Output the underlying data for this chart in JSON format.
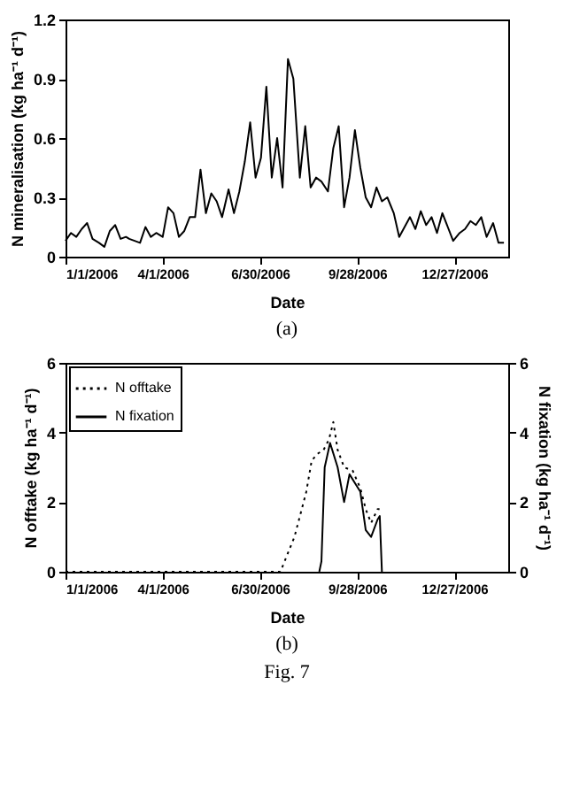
{
  "chart_data": [
    {
      "type": "line",
      "xlabel": "Date",
      "ylabel": "N mineralisation (kg ha⁻¹ d⁻¹)",
      "grid": false,
      "marker": "none",
      "line_style": "solid",
      "color": "#000000",
      "x": [
        "2006-01-01",
        "2006-01-06",
        "2006-01-11",
        "2006-01-16",
        "2006-01-21",
        "2006-01-26",
        "2006-02-01",
        "2006-02-06",
        "2006-02-11",
        "2006-02-16",
        "2006-02-21",
        "2006-02-26",
        "2006-03-01",
        "2006-03-06",
        "2006-03-11",
        "2006-03-16",
        "2006-03-21",
        "2006-03-26",
        "2006-04-01",
        "2006-04-06",
        "2006-04-11",
        "2006-04-16",
        "2006-04-21",
        "2006-04-26",
        "2006-05-01",
        "2006-05-06",
        "2006-05-11",
        "2006-05-16",
        "2006-05-21",
        "2006-05-26",
        "2006-06-01",
        "2006-06-06",
        "2006-06-11",
        "2006-06-16",
        "2006-06-21",
        "2006-06-26",
        "2006-07-01",
        "2006-07-06",
        "2006-07-11",
        "2006-07-16",
        "2006-07-21",
        "2006-07-26",
        "2006-07-31",
        "2006-08-06",
        "2006-08-11",
        "2006-08-16",
        "2006-08-21",
        "2006-08-26",
        "2006-09-01",
        "2006-09-06",
        "2006-09-11",
        "2006-09-16",
        "2006-09-21",
        "2006-09-26",
        "2006-10-01",
        "2006-10-06",
        "2006-10-11",
        "2006-10-16",
        "2006-10-21",
        "2006-10-26",
        "2006-11-01",
        "2006-11-06",
        "2006-11-11",
        "2006-11-16",
        "2006-11-21",
        "2006-11-26",
        "2006-12-01",
        "2006-12-06",
        "2006-12-11",
        "2006-12-16",
        "2006-12-21",
        "2006-12-26",
        "2007-01-01",
        "2007-01-06",
        "2007-01-11",
        "2007-01-16",
        "2007-01-21",
        "2007-01-26",
        "2007-02-01",
        "2007-02-06",
        "2007-02-11"
      ],
      "values": [
        0.08,
        0.12,
        0.1,
        0.14,
        0.17,
        0.09,
        0.07,
        0.05,
        0.13,
        0.16,
        0.09,
        0.1,
        0.09,
        0.08,
        0.07,
        0.15,
        0.1,
        0.12,
        0.1,
        0.25,
        0.22,
        0.1,
        0.13,
        0.2,
        0.2,
        0.44,
        0.22,
        0.32,
        0.28,
        0.2,
        0.34,
        0.22,
        0.33,
        0.48,
        0.68,
        0.4,
        0.5,
        0.86,
        0.4,
        0.6,
        0.35,
        1.0,
        0.9,
        0.4,
        0.66,
        0.35,
        0.4,
        0.38,
        0.33,
        0.55,
        0.66,
        0.25,
        0.4,
        0.64,
        0.45,
        0.3,
        0.25,
        0.35,
        0.28,
        0.3,
        0.22,
        0.1,
        0.15,
        0.2,
        0.14,
        0.23,
        0.16,
        0.2,
        0.12,
        0.22,
        0.15,
        0.08,
        0.12,
        0.14,
        0.18,
        0.16,
        0.2,
        0.1,
        0.17,
        0.07,
        0.07
      ],
      "xlim": [
        "2006-01-01",
        "2007-02-15"
      ],
      "xticks": [
        {
          "value": "2006-01-01",
          "label": "1/1/2006"
        },
        {
          "value": "2006-04-01",
          "label": "4/1/2006"
        },
        {
          "value": "2006-06-30",
          "label": "6/30/2006"
        },
        {
          "value": "2006-09-28",
          "label": "9/28/2006"
        },
        {
          "value": "2006-12-27",
          "label": "12/27/2006"
        }
      ],
      "ylim": [
        0,
        1.2
      ],
      "yticks": [
        0,
        0.3,
        0.6,
        0.9,
        1.2
      ],
      "annotations": [
        "(a)"
      ]
    },
    {
      "type": "line",
      "xlabel": "Date",
      "ylabel": "N offtake (kg ha⁻¹ d⁻¹)",
      "y2label": "N fixation (kg ha⁻¹ d⁻¹)",
      "grid": false,
      "marker": "none",
      "legend": "top left",
      "series": [
        {
          "name": "N offtake",
          "color": "#000000",
          "line_style": "dotted",
          "x": [
            "2006-01-01",
            "2006-07-19",
            "2006-08-01",
            "2006-08-12",
            "2006-08-17",
            "2006-08-23",
            "2006-08-28",
            "2006-09-02",
            "2006-09-06",
            "2006-09-10",
            "2006-09-16",
            "2006-09-24",
            "2006-10-01",
            "2006-10-06",
            "2006-10-11",
            "2006-10-17",
            "2006-10-19"
          ],
          "values": [
            0,
            0,
            1.0,
            2.3,
            3.2,
            3.4,
            3.5,
            3.8,
            4.3,
            3.5,
            3.0,
            2.9,
            2.4,
            1.8,
            1.4,
            1.8,
            1.8
          ]
        },
        {
          "name": "N fixation",
          "color": "#000000",
          "line_style": "solid",
          "axis": "y2",
          "x": [
            "2006-08-24",
            "2006-08-26",
            "2006-08-29",
            "2006-09-03",
            "2006-09-10",
            "2006-09-16",
            "2006-09-21",
            "2006-09-27",
            "2006-10-01",
            "2006-10-06",
            "2006-10-11",
            "2006-10-17",
            "2006-10-19",
            "2006-10-21"
          ],
          "values": [
            0,
            0.3,
            3.0,
            3.7,
            3.0,
            2.0,
            2.8,
            2.5,
            2.3,
            1.2,
            1.0,
            1.5,
            1.6,
            0
          ]
        }
      ],
      "xlim": [
        "2006-01-01",
        "2007-02-15"
      ],
      "xticks": [
        {
          "value": "2006-01-01",
          "label": "1/1/2006"
        },
        {
          "value": "2006-04-01",
          "label": "4/1/2006"
        },
        {
          "value": "2006-06-30",
          "label": "6/30/2006"
        },
        {
          "value": "2006-09-28",
          "label": "9/28/2006"
        },
        {
          "value": "2006-12-27",
          "label": "12/27/2006"
        }
      ],
      "ylim": [
        0,
        6
      ],
      "yticks": [
        0,
        2,
        4,
        6
      ],
      "y2lim": [
        0,
        6
      ],
      "y2ticks": [
        0,
        2,
        4,
        6
      ],
      "annotations": [
        "(b)",
        "Fig. 7"
      ]
    }
  ]
}
